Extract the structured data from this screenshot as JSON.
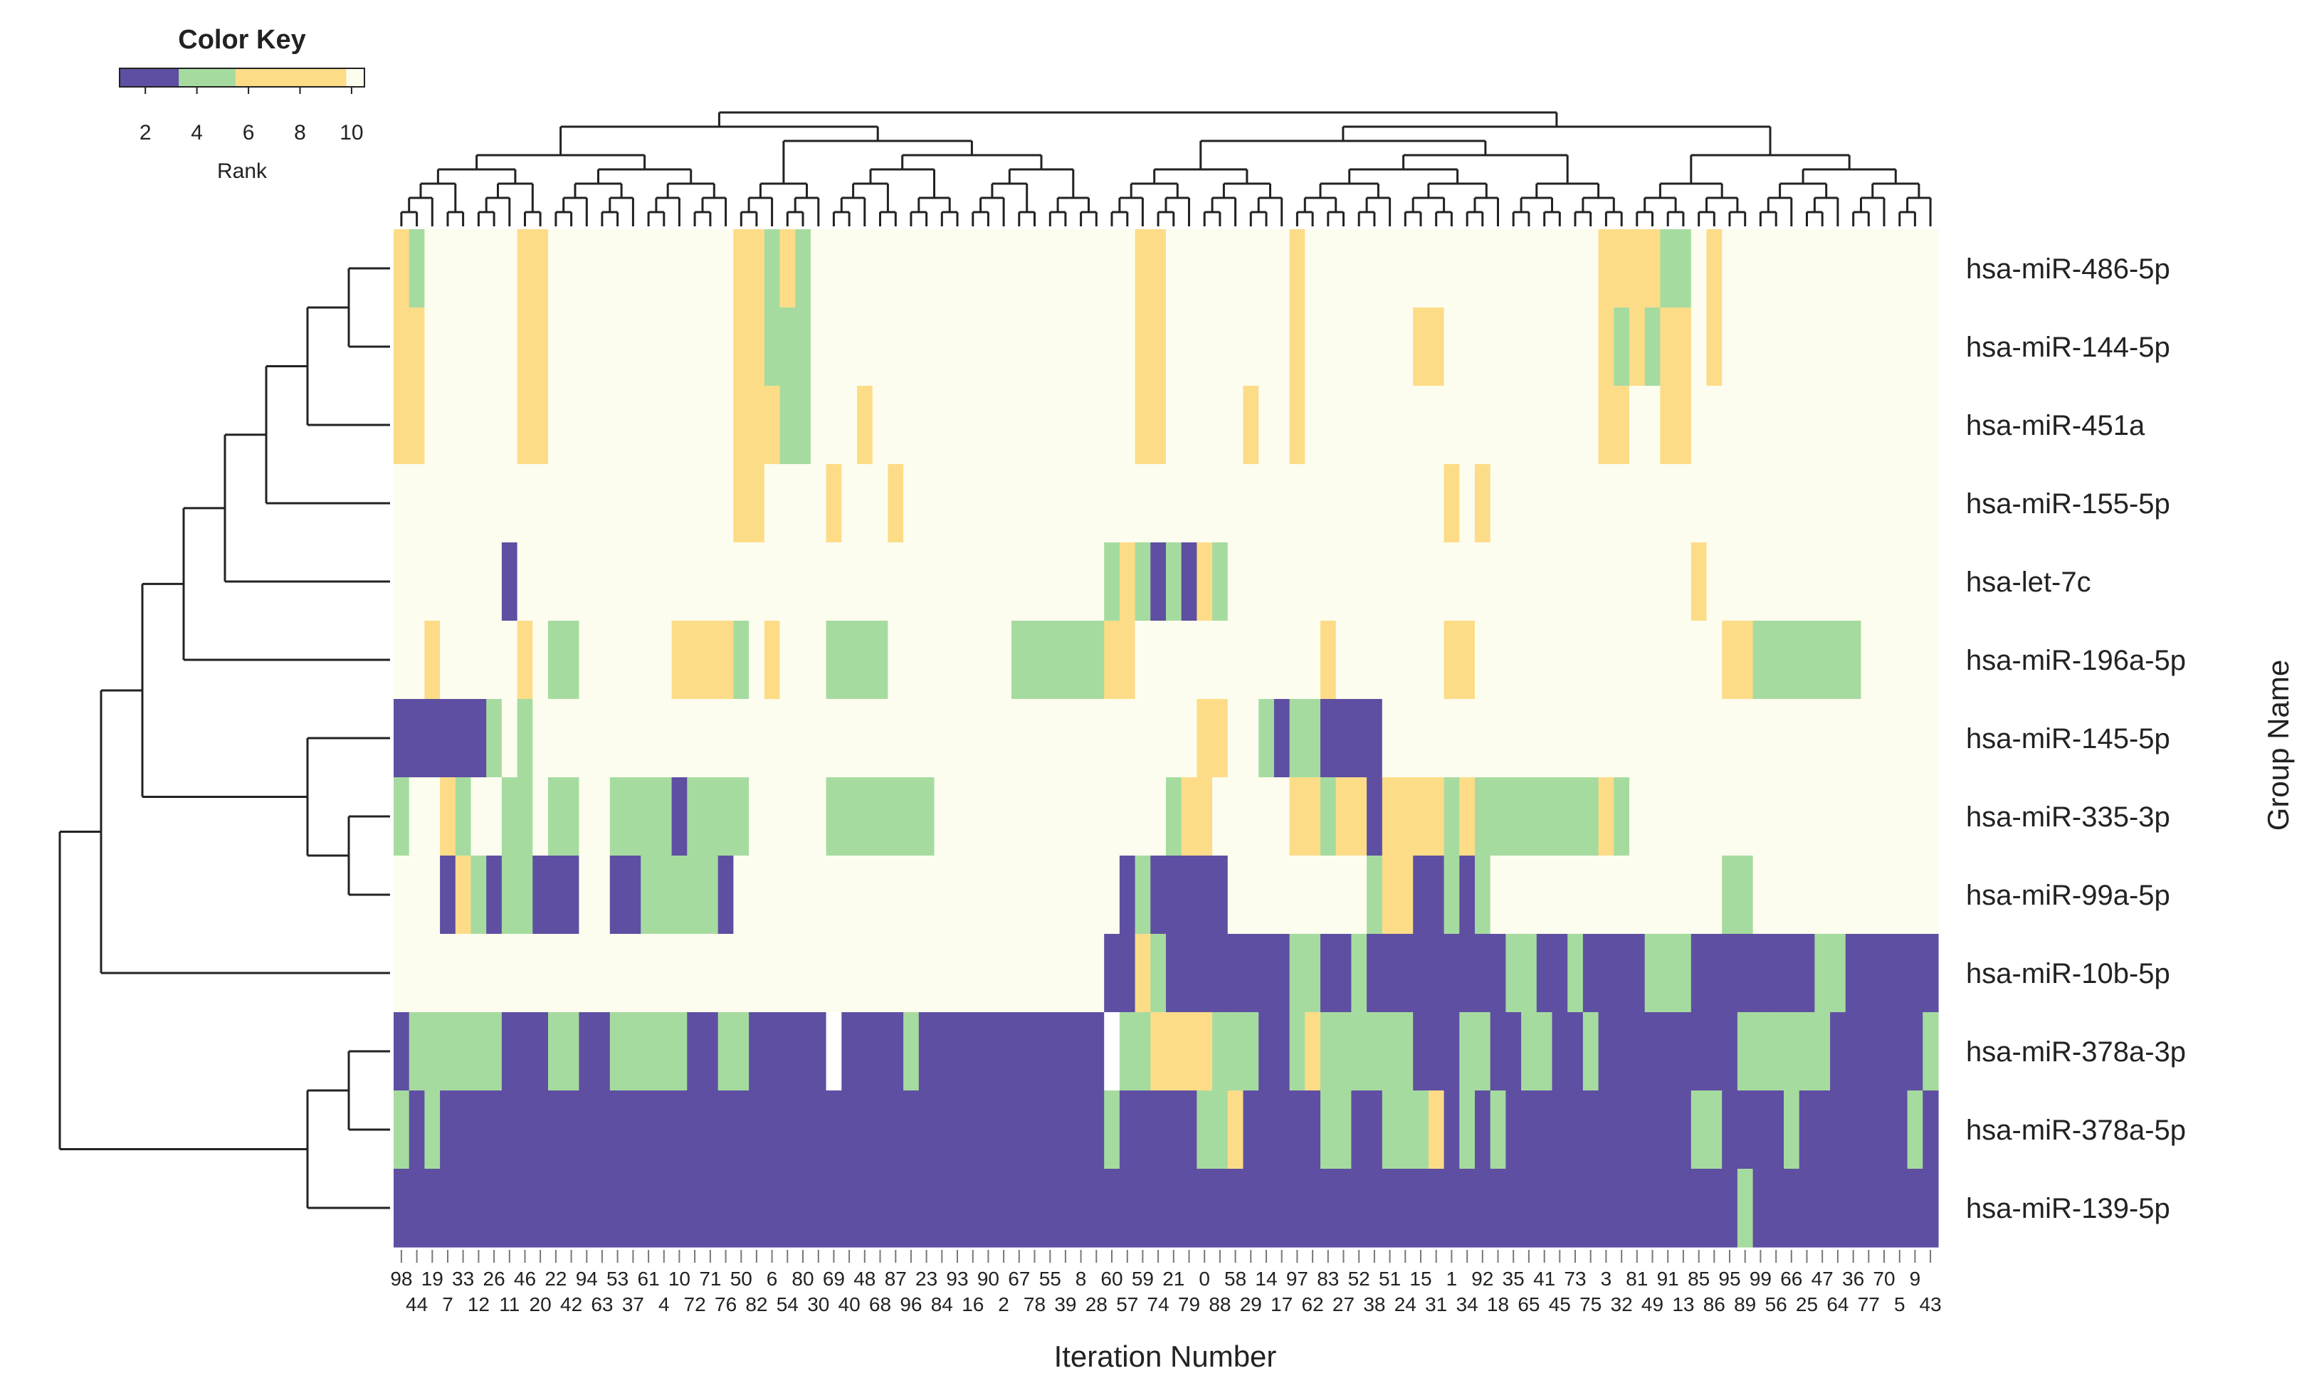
{
  "chart_data": {
    "type": "heatmap",
    "title": "",
    "xlabel": "Iteration Number",
    "ylabel": "Group Name",
    "color_key": {
      "title": "Color Key",
      "label": "Rank",
      "ticks": [
        "2",
        "4",
        "6",
        "8",
        "10"
      ],
      "range": [
        1,
        10.5
      ],
      "bins": [
        {
          "from": 1,
          "to": 3.3,
          "color": "#5e4fa2"
        },
        {
          "from": 3.3,
          "to": 5.5,
          "color": "#a6dba0"
        },
        {
          "from": 5.5,
          "to": 9.8,
          "color": "#fddc88"
        },
        {
          "from": 9.8,
          "to": 10.5,
          "color": "#fcfdee"
        }
      ]
    },
    "rows": [
      "hsa-miR-486-5p",
      "hsa-miR-144-5p",
      "hsa-miR-451a",
      "hsa-miR-155-5p",
      "hsa-let-7c",
      "hsa-miR-196a-5p",
      "hsa-miR-145-5p",
      "hsa-miR-335-3p",
      "hsa-miR-99a-5p",
      "hsa-miR-10b-5p",
      "hsa-miR-378a-3p",
      "hsa-miR-378a-5p",
      "hsa-miR-139-5p"
    ],
    "columns": [
      "98",
      "44",
      "19",
      "7",
      "33",
      "12",
      "26",
      "11",
      "46",
      "20",
      "22",
      "42",
      "94",
      "63",
      "53",
      "37",
      "61",
      "4",
      "10",
      "72",
      "71",
      "76",
      "50",
      "82",
      "6",
      "54",
      "80",
      "30",
      "69",
      "40",
      "48",
      "68",
      "87",
      "96",
      "23",
      "84",
      "93",
      "16",
      "90",
      "2",
      "67",
      "78",
      "55",
      "39",
      "8",
      "28",
      "60",
      "57",
      "59",
      "74",
      "21",
      "79",
      "0",
      "88",
      "58",
      "29",
      "14",
      "17",
      "97",
      "62",
      "83",
      "27",
      "52",
      "38",
      "51",
      "24",
      "15",
      "31",
      "1",
      "34",
      "92",
      "18",
      "35",
      "65",
      "41",
      "45",
      "73",
      "75",
      "3",
      "32",
      "81",
      "49",
      "91",
      "13",
      "85",
      "86",
      "95",
      "89",
      "99",
      "56",
      "66",
      "25",
      "47",
      "64",
      "36",
      "77",
      "70",
      "5",
      "9",
      "43"
    ],
    "legend_codes": {
      "D": "1-3 (purple)",
      "G": "4-5 (green)",
      "Y": "6-9 (yellow)",
      "W": "10 (cream)",
      "X": "missing"
    },
    "values": [
      "YGWWWWWWYYWWWWWWWWWWWWYYGYGWWWWWWWWWWWWWWWWWWWWWYYWWWWWWWWYWWWWWWWWWWWWWWWWWWWYYYYGGWYWWWWWWWWWWWWWW",
      "YYWWWWWWYYWWWWWWWWWWWWYYGGGWWWWWWWWWWWWWWWWWWWWWYYWWWWWWWWYWWWWWWWYYWWWWWWWWWWYGYGYYWYWWWWWWWWWWWWWW",
      "YYWWWWWWYYWWWWWWWWWWWWYYYGGWWWYWWWWWWWWWWWWWWWWWYYWWWWWYWWYWWWWWWWWWWWWWWWWWWWYYWWYYWWWWWWWWWWWWWWWW",
      "WWWWWWWWWWWWWWWWWWWWWWYYWWWWYWWWYWWWWWWWWWWWWWWWWWWWWWWWWWWWWWWWWWWWYWYWWWWWWWWWWWWWWWWWWWWWWWWWWWWW",
      "WWWWWWWDWWWWWWWWWWWWWWWWWWWWWWWWWWWWWWWWWWWWWWGYGDGDYGWWWWWWWWWWWWWWWWWWWWWWWWWWWWWWYWWWWWWWWWWWWWWW",
      "WWYWWWWWYWGGWWWWWWYYYYGWYWWWGGGGWWWWWWWWGGGGGGYYWWWWWWWWWWWWYWWWWWWWYYWWWWWWWWWWWWWWWWYYGGGGGGGWWWWW",
      "DDDDDDGWGWWWWWWWWWWWWWWWWWWWWWWWWWWWWWWWWWWWWWWWWWWWYYWWGDGGDDDDWWWWWWWWWWWWWWWWWWWWWWWWWWWWWWWWWWWW",
      "GWWYGWWGGWGGWWGGGGDGGGGWWWWWGGGGGGGWWWWWWWWWWWWWWWGYYWWWWWYYGYYDYYYYGYGGGGGGGGYGWWWWWWWWWWWWWWWWWWWW",
      "WWWDYGDGGDDDWWDDGGGGGDWWWWWWWWWWWWWWWWWWWWWWWWWDGDDDDDWWWWWWWWWGYYDDGDGWWWWWWWWWWWWWWWGGWWWWWWWWWWWW",
      "WWWWWWWWWWWWWWWWWWWWWWWWWWWWWWWWWWWWWWWWWWWWWWDDYGDDDDDDDDGGDDGDDDDDDDDDGGDDGDDDDGGGDDDDDDDDGGDDDDDD",
      "DGGGGGGDDDGGDDGGGGGDDGGDDDDDXDDDDGDDDDDDDDDDDDXGGYYYYGGGDDGYGGGGGGDDDGGDDGGDDGDDDDDDDDDGGGGGGDDDDDDG",
      "GDGDDDDDDDDDDDDDDDDDDDDDDDDDDDDDDDDDDDDDDDDDDDGDDDDDGGYDDDDDGGDDGGGYDGDGDDDDDDDDDDDDGGDDDDGDDDDDDDGDD",
      "DDDDDDDDDDDDDDDDDDDDDDDDDDDDDDDDDDDDDDDDDDDDDDDDDDDDDDDDDDDDDDDDDDDDDDDDDDDDDDDDDDDDDDDGDDDDDDDDDDDD"
    ]
  }
}
